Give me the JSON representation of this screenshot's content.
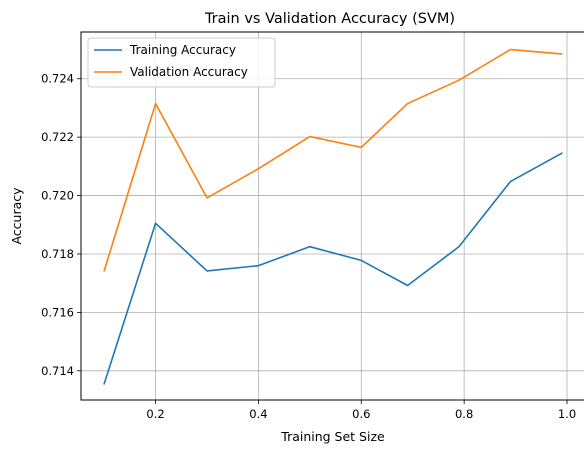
{
  "chart_data": {
    "type": "line",
    "title": "Train vs Validation Accuracy (SVM)",
    "xlabel": "Training Set Size",
    "ylabel": "Accuracy",
    "xlim": [
      0.055,
      1.035
    ],
    "ylim": [
      0.713,
      0.7256
    ],
    "xticks": [
      0.2,
      0.4,
      0.6,
      0.8,
      1.0
    ],
    "xtick_labels": [
      "0.2",
      "0.4",
      "0.6",
      "0.8",
      "1.0"
    ],
    "yticks": [
      0.714,
      0.716,
      0.718,
      0.72,
      0.722,
      0.724
    ],
    "ytick_labels": [
      "0.714",
      "0.716",
      "0.718",
      "0.720",
      "0.722",
      "0.724"
    ],
    "grid": true,
    "legend_position": "top-left",
    "x": [
      0.1,
      0.2,
      0.3,
      0.4,
      0.5,
      0.6,
      0.69,
      0.79,
      0.89,
      0.99
    ],
    "series": [
      {
        "name": "Training Accuracy",
        "color": "#1f77b4",
        "values": [
          0.71355,
          0.71905,
          0.71742,
          0.7176,
          0.71825,
          0.71778,
          0.71692,
          0.71825,
          0.72048,
          0.72145
        ]
      },
      {
        "name": "Validation Accuracy",
        "color": "#ff7f0e",
        "values": [
          0.71742,
          0.72315,
          0.71992,
          0.72092,
          0.72202,
          0.72165,
          0.72315,
          0.72395,
          0.725,
          0.72485
        ]
      }
    ]
  }
}
